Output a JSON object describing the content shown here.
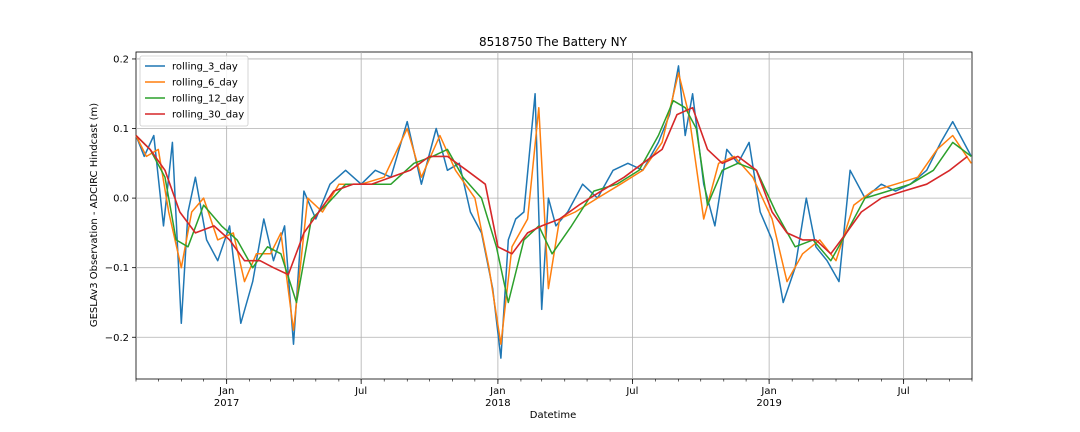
{
  "chart_data": {
    "type": "line",
    "title": "8518750 The Battery NY",
    "xlabel": "Datetime",
    "ylabel": "GESLAv3 Observation - ADCIRC Hindcast (m)",
    "xlim": [
      "2016-09-01",
      "2019-10-01"
    ],
    "ylim": [
      -0.26,
      0.21
    ],
    "yticks": [
      -0.2,
      -0.1,
      0.0,
      0.1,
      0.2
    ],
    "ytick_labels": [
      "−0.2",
      "−0.1",
      "0.0",
      "0.1",
      "0.2"
    ],
    "xticks": [
      {
        "date": "2017-01-01",
        "label": "Jan",
        "sublabel": "2017"
      },
      {
        "date": "2017-07-01",
        "label": "Jul",
        "sublabel": ""
      },
      {
        "date": "2018-01-01",
        "label": "Jan",
        "sublabel": "2018"
      },
      {
        "date": "2018-07-01",
        "label": "Jul",
        "sublabel": ""
      },
      {
        "date": "2019-01-01",
        "label": "Jan",
        "sublabel": "2019"
      },
      {
        "date": "2019-07-01",
        "label": "Jul",
        "sublabel": ""
      }
    ],
    "grid": true,
    "legend_position": "upper-left",
    "series": [
      {
        "name": "rolling_3_day",
        "color": "#1f77b4",
        "x": [
          "2016-09-01",
          "2016-09-12",
          "2016-09-25",
          "2016-10-08",
          "2016-10-20",
          "2016-11-01",
          "2016-11-10",
          "2016-11-20",
          "2016-12-05",
          "2016-12-20",
          "2017-01-05",
          "2017-01-20",
          "2017-02-05",
          "2017-02-20",
          "2017-03-05",
          "2017-03-20",
          "2017-04-01",
          "2017-04-15",
          "2017-05-01",
          "2017-05-20",
          "2017-06-10",
          "2017-07-01",
          "2017-07-20",
          "2017-08-10",
          "2017-09-01",
          "2017-09-20",
          "2017-10-10",
          "2017-10-25",
          "2017-11-10",
          "2017-11-25",
          "2017-12-10",
          "2017-12-25",
          "2018-01-05",
          "2018-01-15",
          "2018-01-25",
          "2018-02-05",
          "2018-02-20",
          "2018-03-01",
          "2018-03-10",
          "2018-03-20",
          "2018-04-05",
          "2018-04-25",
          "2018-05-15",
          "2018-06-05",
          "2018-06-25",
          "2018-07-15",
          "2018-08-05",
          "2018-08-20",
          "2018-09-01",
          "2018-09-10",
          "2018-09-20",
          "2018-10-05",
          "2018-10-20",
          "2018-11-05",
          "2018-11-20",
          "2018-12-05",
          "2018-12-20",
          "2019-01-05",
          "2019-01-20",
          "2019-02-05",
          "2019-02-20",
          "2019-03-05",
          "2019-03-20",
          "2019-04-05",
          "2019-04-20",
          "2019-05-10",
          "2019-06-01",
          "2019-06-20",
          "2019-07-10",
          "2019-08-01",
          "2019-08-20",
          "2019-09-05",
          "2019-09-30"
        ],
        "y": [
          0.09,
          0.06,
          0.09,
          -0.04,
          0.08,
          -0.18,
          -0.02,
          0.03,
          -0.06,
          -0.09,
          -0.04,
          -0.18,
          -0.12,
          -0.03,
          -0.09,
          -0.04,
          -0.21,
          0.01,
          -0.03,
          0.02,
          0.04,
          0.02,
          0.04,
          0.03,
          0.11,
          0.02,
          0.1,
          0.04,
          0.05,
          -0.02,
          -0.05,
          -0.13,
          -0.23,
          -0.06,
          -0.03,
          -0.02,
          0.15,
          -0.16,
          0.0,
          -0.04,
          -0.02,
          0.02,
          0.0,
          0.04,
          0.05,
          0.04,
          0.08,
          0.12,
          0.19,
          0.09,
          0.15,
          0.02,
          -0.04,
          0.07,
          0.05,
          0.08,
          -0.02,
          -0.06,
          -0.15,
          -0.1,
          0.0,
          -0.07,
          -0.09,
          -0.12,
          0.04,
          0.0,
          0.02,
          0.01,
          0.02,
          0.04,
          0.08,
          0.11,
          0.06
        ]
      },
      {
        "name": "rolling_6_day",
        "color": "#ff7f0e",
        "x": [
          "2016-09-01",
          "2016-09-15",
          "2016-10-01",
          "2016-10-15",
          "2016-11-01",
          "2016-11-15",
          "2016-12-01",
          "2016-12-20",
          "2017-01-10",
          "2017-01-25",
          "2017-02-10",
          "2017-03-01",
          "2017-03-15",
          "2017-04-01",
          "2017-04-20",
          "2017-05-10",
          "2017-06-01",
          "2017-07-01",
          "2017-08-01",
          "2017-09-01",
          "2017-09-20",
          "2017-10-15",
          "2017-11-05",
          "2017-12-01",
          "2017-12-20",
          "2018-01-05",
          "2018-01-20",
          "2018-02-10",
          "2018-02-25",
          "2018-03-10",
          "2018-03-25",
          "2018-04-15",
          "2018-05-15",
          "2018-06-15",
          "2018-07-15",
          "2018-08-10",
          "2018-09-01",
          "2018-09-15",
          "2018-10-05",
          "2018-10-25",
          "2018-11-15",
          "2018-12-10",
          "2019-01-05",
          "2019-01-25",
          "2019-02-15",
          "2019-03-10",
          "2019-04-01",
          "2019-04-25",
          "2019-05-20",
          "2019-06-20",
          "2019-07-20",
          "2019-08-15",
          "2019-09-05",
          "2019-09-30"
        ],
        "y": [
          0.09,
          0.06,
          0.07,
          -0.02,
          -0.1,
          -0.02,
          0.0,
          -0.06,
          -0.05,
          -0.12,
          -0.08,
          -0.08,
          -0.05,
          -0.19,
          0.0,
          -0.02,
          0.02,
          0.02,
          0.03,
          0.1,
          0.03,
          0.09,
          0.04,
          0.0,
          -0.1,
          -0.21,
          -0.07,
          -0.03,
          0.13,
          -0.13,
          -0.03,
          -0.02,
          0.0,
          0.02,
          0.04,
          0.08,
          0.18,
          0.12,
          -0.03,
          0.05,
          0.06,
          0.03,
          -0.03,
          -0.12,
          -0.08,
          -0.06,
          -0.09,
          -0.01,
          0.01,
          0.02,
          0.03,
          0.07,
          0.09,
          0.05
        ]
      },
      {
        "name": "rolling_12_day",
        "color": "#2ca02c",
        "x": [
          "2016-09-01",
          "2016-09-20",
          "2016-10-10",
          "2016-10-25",
          "2016-11-10",
          "2016-12-01",
          "2016-12-25",
          "2017-01-15",
          "2017-02-05",
          "2017-02-25",
          "2017-03-15",
          "2017-04-05",
          "2017-04-25",
          "2017-05-15",
          "2017-06-10",
          "2017-07-10",
          "2017-08-10",
          "2017-09-10",
          "2017-10-05",
          "2017-10-25",
          "2017-11-15",
          "2017-12-10",
          "2017-12-30",
          "2018-01-15",
          "2018-02-05",
          "2018-02-25",
          "2018-03-15",
          "2018-04-10",
          "2018-05-10",
          "2018-06-10",
          "2018-07-10",
          "2018-08-05",
          "2018-08-25",
          "2018-09-10",
          "2018-09-25",
          "2018-10-10",
          "2018-10-30",
          "2018-11-20",
          "2018-12-15",
          "2019-01-10",
          "2019-02-05",
          "2019-03-01",
          "2019-03-25",
          "2019-04-15",
          "2019-05-10",
          "2019-06-10",
          "2019-07-10",
          "2019-08-10",
          "2019-09-05",
          "2019-09-30"
        ],
        "y": [
          0.09,
          0.07,
          0.03,
          -0.06,
          -0.07,
          -0.01,
          -0.04,
          -0.06,
          -0.1,
          -0.07,
          -0.08,
          -0.15,
          -0.03,
          -0.01,
          0.02,
          0.02,
          0.02,
          0.05,
          0.06,
          0.07,
          0.03,
          0.0,
          -0.07,
          -0.15,
          -0.06,
          -0.04,
          -0.08,
          -0.04,
          0.01,
          0.02,
          0.04,
          0.09,
          0.14,
          0.13,
          0.1,
          -0.01,
          0.04,
          0.05,
          0.04,
          -0.02,
          -0.07,
          -0.06,
          -0.09,
          -0.05,
          0.0,
          0.01,
          0.02,
          0.04,
          0.08,
          0.06
        ]
      },
      {
        "name": "rolling_30_day",
        "color": "#d62728",
        "x": [
          "2016-09-01",
          "2016-09-20",
          "2016-10-10",
          "2016-10-30",
          "2016-11-20",
          "2016-12-15",
          "2017-01-05",
          "2017-01-25",
          "2017-02-15",
          "2017-03-05",
          "2017-03-25",
          "2017-04-15",
          "2017-05-05",
          "2017-05-25",
          "2017-06-20",
          "2017-07-15",
          "2017-08-10",
          "2017-09-05",
          "2017-10-01",
          "2017-10-25",
          "2017-11-20",
          "2017-12-15",
          "2018-01-01",
          "2018-01-20",
          "2018-02-10",
          "2018-03-01",
          "2018-03-25",
          "2018-04-20",
          "2018-05-20",
          "2018-06-20",
          "2018-07-15",
          "2018-08-10",
          "2018-08-30",
          "2018-09-20",
          "2018-10-10",
          "2018-10-30",
          "2018-11-20",
          "2018-12-15",
          "2019-01-05",
          "2019-01-25",
          "2019-02-15",
          "2019-03-05",
          "2019-03-25",
          "2019-04-15",
          "2019-05-05",
          "2019-06-01",
          "2019-07-01",
          "2019-08-01",
          "2019-09-01",
          "2019-09-25"
        ],
        "y": [
          0.09,
          0.07,
          0.04,
          -0.02,
          -0.05,
          -0.04,
          -0.06,
          -0.09,
          -0.09,
          -0.1,
          -0.11,
          -0.05,
          -0.02,
          0.01,
          0.02,
          0.02,
          0.03,
          0.04,
          0.06,
          0.06,
          0.04,
          0.02,
          -0.07,
          -0.08,
          -0.05,
          -0.04,
          -0.03,
          -0.01,
          0.01,
          0.03,
          0.05,
          0.07,
          0.12,
          0.13,
          0.07,
          0.05,
          0.06,
          0.04,
          -0.02,
          -0.05,
          -0.06,
          -0.06,
          -0.08,
          -0.05,
          -0.02,
          0.0,
          0.01,
          0.02,
          0.04,
          0.06
        ]
      }
    ]
  }
}
